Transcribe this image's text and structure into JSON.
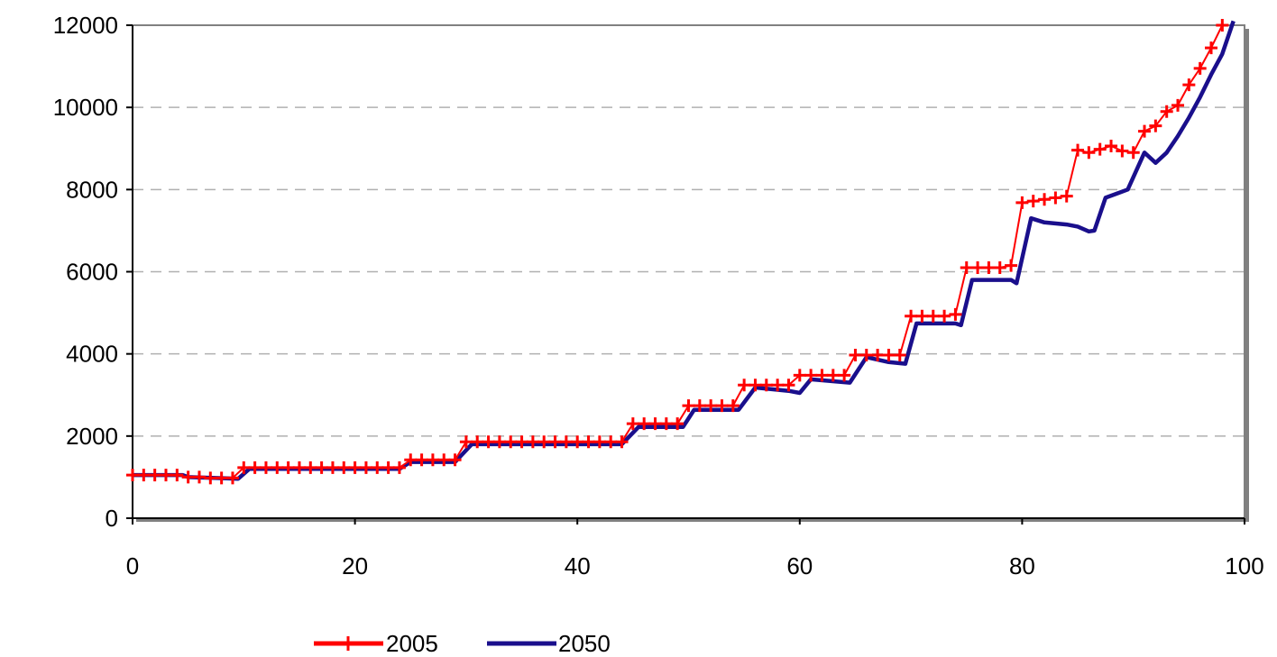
{
  "chart_data": {
    "type": "line",
    "xlim": [
      0,
      100
    ],
    "ylim": [
      0,
      12000
    ],
    "x_ticks": [
      0,
      20,
      40,
      60,
      80,
      100
    ],
    "y_ticks": [
      0,
      2000,
      4000,
      6000,
      8000,
      10000,
      12000
    ],
    "x_tick_labels": [
      "0",
      "20",
      "40",
      "60",
      "80",
      "100"
    ],
    "y_tick_labels": [
      "0",
      "2000",
      "4000",
      "6000",
      "8000",
      "10000",
      "12000"
    ],
    "grid": "horizontal dashed",
    "legend_position": "bottom",
    "series": [
      {
        "name": "2005",
        "color": "#ff0000",
        "marker": "plus",
        "points": [
          [
            0,
            1050
          ],
          [
            1,
            1050
          ],
          [
            2,
            1050
          ],
          [
            3,
            1050
          ],
          [
            4,
            1050
          ],
          [
            5,
            1000
          ],
          [
            6,
            1000
          ],
          [
            7,
            980
          ],
          [
            8,
            980
          ],
          [
            9,
            980
          ],
          [
            10,
            1230
          ],
          [
            11,
            1230
          ],
          [
            12,
            1230
          ],
          [
            13,
            1230
          ],
          [
            14,
            1230
          ],
          [
            15,
            1230
          ],
          [
            16,
            1230
          ],
          [
            17,
            1230
          ],
          [
            18,
            1230
          ],
          [
            19,
            1230
          ],
          [
            20,
            1230
          ],
          [
            21,
            1230
          ],
          [
            22,
            1230
          ],
          [
            23,
            1230
          ],
          [
            24,
            1230
          ],
          [
            25,
            1420
          ],
          [
            26,
            1420
          ],
          [
            27,
            1420
          ],
          [
            28,
            1420
          ],
          [
            29,
            1420
          ],
          [
            30,
            1860
          ],
          [
            31,
            1860
          ],
          [
            32,
            1860
          ],
          [
            33,
            1860
          ],
          [
            34,
            1860
          ],
          [
            35,
            1860
          ],
          [
            36,
            1860
          ],
          [
            37,
            1860
          ],
          [
            38,
            1860
          ],
          [
            39,
            1860
          ],
          [
            40,
            1860
          ],
          [
            41,
            1860
          ],
          [
            42,
            1860
          ],
          [
            43,
            1860
          ],
          [
            44,
            1860
          ],
          [
            45,
            2300
          ],
          [
            46,
            2300
          ],
          [
            47,
            2300
          ],
          [
            48,
            2300
          ],
          [
            49,
            2300
          ],
          [
            50,
            2740
          ],
          [
            51,
            2740
          ],
          [
            52,
            2740
          ],
          [
            53,
            2740
          ],
          [
            54,
            2740
          ],
          [
            55,
            3240
          ],
          [
            56,
            3240
          ],
          [
            57,
            3240
          ],
          [
            58,
            3240
          ],
          [
            59,
            3240
          ],
          [
            60,
            3480
          ],
          [
            61,
            3480
          ],
          [
            62,
            3480
          ],
          [
            63,
            3480
          ],
          [
            64,
            3480
          ],
          [
            65,
            3970
          ],
          [
            66,
            3970
          ],
          [
            67,
            3970
          ],
          [
            68,
            3970
          ],
          [
            69,
            3970
          ],
          [
            70,
            4920
          ],
          [
            71,
            4920
          ],
          [
            72,
            4920
          ],
          [
            73,
            4920
          ],
          [
            74,
            4960
          ],
          [
            75,
            6100
          ],
          [
            76,
            6100
          ],
          [
            77,
            6100
          ],
          [
            78,
            6100
          ],
          [
            79,
            6150
          ],
          [
            80,
            7680
          ],
          [
            81,
            7720
          ],
          [
            82,
            7760
          ],
          [
            83,
            7800
          ],
          [
            84,
            7840
          ],
          [
            85,
            8960
          ],
          [
            86,
            8900
          ],
          [
            87,
            8980
          ],
          [
            88,
            9060
          ],
          [
            89,
            8940
          ],
          [
            90,
            8900
          ],
          [
            91,
            9420
          ],
          [
            92,
            9550
          ],
          [
            93,
            9900
          ],
          [
            94,
            10050
          ],
          [
            95,
            10550
          ],
          [
            96,
            10950
          ],
          [
            97,
            11450
          ],
          [
            98,
            12000
          ]
        ]
      },
      {
        "name": "2050",
        "color": "#1a0f8c",
        "marker": "none",
        "points": [
          [
            0,
            1050
          ],
          [
            4.5,
            1050
          ],
          [
            5,
            1000
          ],
          [
            9.5,
            960
          ],
          [
            10.5,
            1200
          ],
          [
            24,
            1200
          ],
          [
            25,
            1370
          ],
          [
            29,
            1370
          ],
          [
            30.5,
            1800
          ],
          [
            44,
            1800
          ],
          [
            45.5,
            2220
          ],
          [
            49.5,
            2220
          ],
          [
            50.5,
            2640
          ],
          [
            54.5,
            2640
          ],
          [
            56,
            3180
          ],
          [
            59,
            3100
          ],
          [
            60,
            3050
          ],
          [
            61,
            3380
          ],
          [
            64.5,
            3300
          ],
          [
            66,
            3920
          ],
          [
            68,
            3800
          ],
          [
            69.5,
            3760
          ],
          [
            70.5,
            4740
          ],
          [
            74,
            4740
          ],
          [
            74.5,
            4700
          ],
          [
            75.5,
            5800
          ],
          [
            79,
            5800
          ],
          [
            79.5,
            5720
          ],
          [
            80.8,
            7300
          ],
          [
            82,
            7200
          ],
          [
            84,
            7150
          ],
          [
            85,
            7100
          ],
          [
            86,
            6980
          ],
          [
            86.5,
            7000
          ],
          [
            87.5,
            7800
          ],
          [
            88.5,
            7900
          ],
          [
            89.5,
            8000
          ],
          [
            91,
            8900
          ],
          [
            92,
            8650
          ],
          [
            93,
            8900
          ],
          [
            94,
            9300
          ],
          [
            95,
            9750
          ],
          [
            96,
            10250
          ],
          [
            97,
            10800
          ],
          [
            98,
            11300
          ],
          [
            99,
            12100
          ]
        ]
      }
    ]
  },
  "legend": {
    "items": [
      {
        "label": "2005",
        "color": "#ff0000"
      },
      {
        "label": "2050",
        "color": "#1a0f8c"
      }
    ]
  }
}
